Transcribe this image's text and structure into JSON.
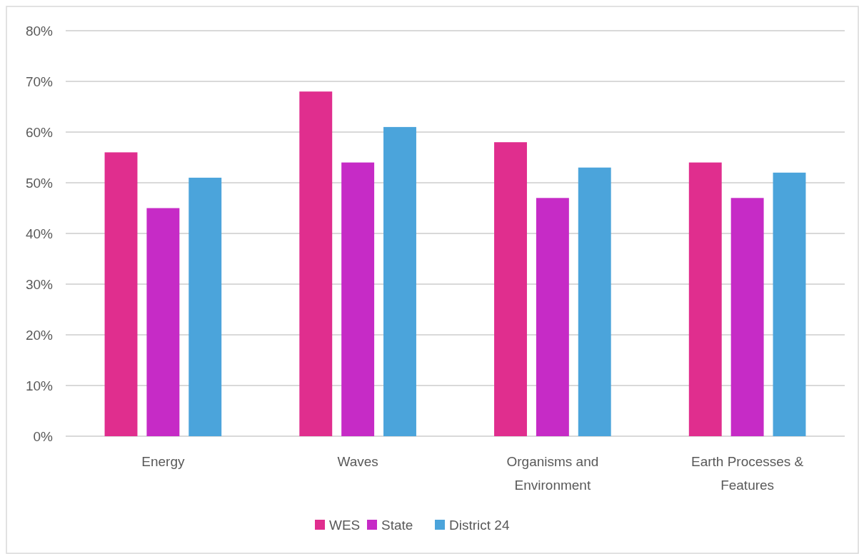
{
  "chart_data": {
    "type": "bar",
    "categories": [
      "Energy",
      "Waves",
      "Organisms and Environment",
      "Earth Processes & Features"
    ],
    "series": [
      {
        "name": "WES",
        "color": "#e02e8e",
        "values": [
          56,
          68,
          58,
          54
        ]
      },
      {
        "name": "State",
        "color": "#c62bc6",
        "values": [
          45,
          54,
          47,
          47
        ]
      },
      {
        "name": "District 24",
        "color": "#4ba4db",
        "values": [
          51,
          61,
          53,
          52
        ]
      }
    ],
    "ylim": [
      0,
      80
    ],
    "yticks": [
      {
        "value": 0,
        "label": "0%"
      },
      {
        "value": 10,
        "label": "10%"
      },
      {
        "value": 20,
        "label": "20%"
      },
      {
        "value": 30,
        "label": "30%"
      },
      {
        "value": 40,
        "label": "40%"
      },
      {
        "value": 50,
        "label": "50%"
      },
      {
        "value": 60,
        "label": "60%"
      },
      {
        "value": 70,
        "label": "70%"
      },
      {
        "value": 80,
        "label": "80%"
      }
    ],
    "grid": "y",
    "legend": "bottom"
  }
}
